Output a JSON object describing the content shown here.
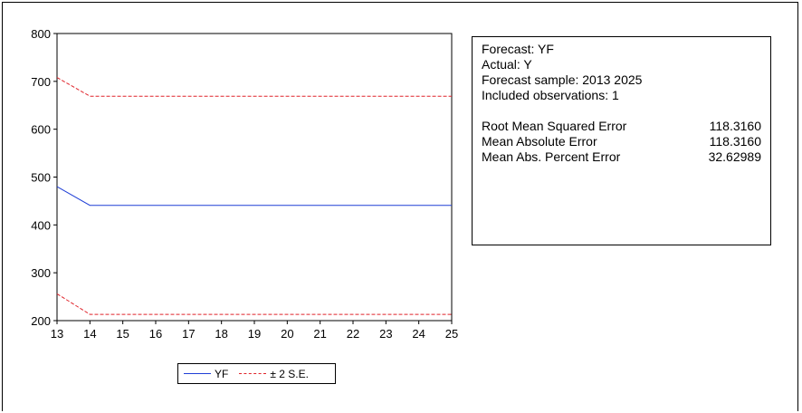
{
  "chart_data": {
    "type": "line",
    "x": [
      13,
      14,
      15,
      16,
      17,
      18,
      19,
      20,
      21,
      22,
      23,
      24,
      25
    ],
    "xticks": [
      "13",
      "14",
      "15",
      "16",
      "17",
      "18",
      "19",
      "20",
      "21",
      "22",
      "23",
      "24",
      "25"
    ],
    "yticks": [
      "200",
      "300",
      "400",
      "500",
      "600",
      "700",
      "800"
    ],
    "ylim": [
      200,
      800
    ],
    "xlim": [
      13,
      25
    ],
    "grid": false,
    "legend_position": "bottom",
    "series": [
      {
        "name": "YF",
        "style": "solid",
        "color": "#1f3fd6",
        "values": [
          480,
          441,
          441,
          441,
          441,
          441,
          441,
          441,
          441,
          441,
          441,
          441,
          441
        ]
      },
      {
        "name": "± 2 S.E.",
        "style": "dashed",
        "color": "#e0242b",
        "values": [
          708,
          669,
          669,
          669,
          669,
          669,
          669,
          669,
          669,
          669,
          669,
          669,
          669
        ]
      },
      {
        "name": "",
        "style": "dashed",
        "color": "#e0242b",
        "values": [
          256,
          213,
          213,
          213,
          213,
          213,
          213,
          213,
          213,
          213,
          213,
          213,
          213
        ]
      }
    ]
  },
  "stats_panel": {
    "forecast_line": "Forecast: YF",
    "actual_line": "Actual: Y",
    "sample_line": "Forecast sample: 2013 2025",
    "obs_line": "Included observations: 1",
    "metrics": [
      {
        "label": "Root Mean Squared Error",
        "value": "118.3160"
      },
      {
        "label": "Mean Absolute Error",
        "value": "118.3160"
      },
      {
        "label": "Mean Abs. Percent Error",
        "value": "32.62989"
      }
    ]
  },
  "legend": {
    "yf_label": "YF",
    "se_label": "± 2 S.E."
  }
}
